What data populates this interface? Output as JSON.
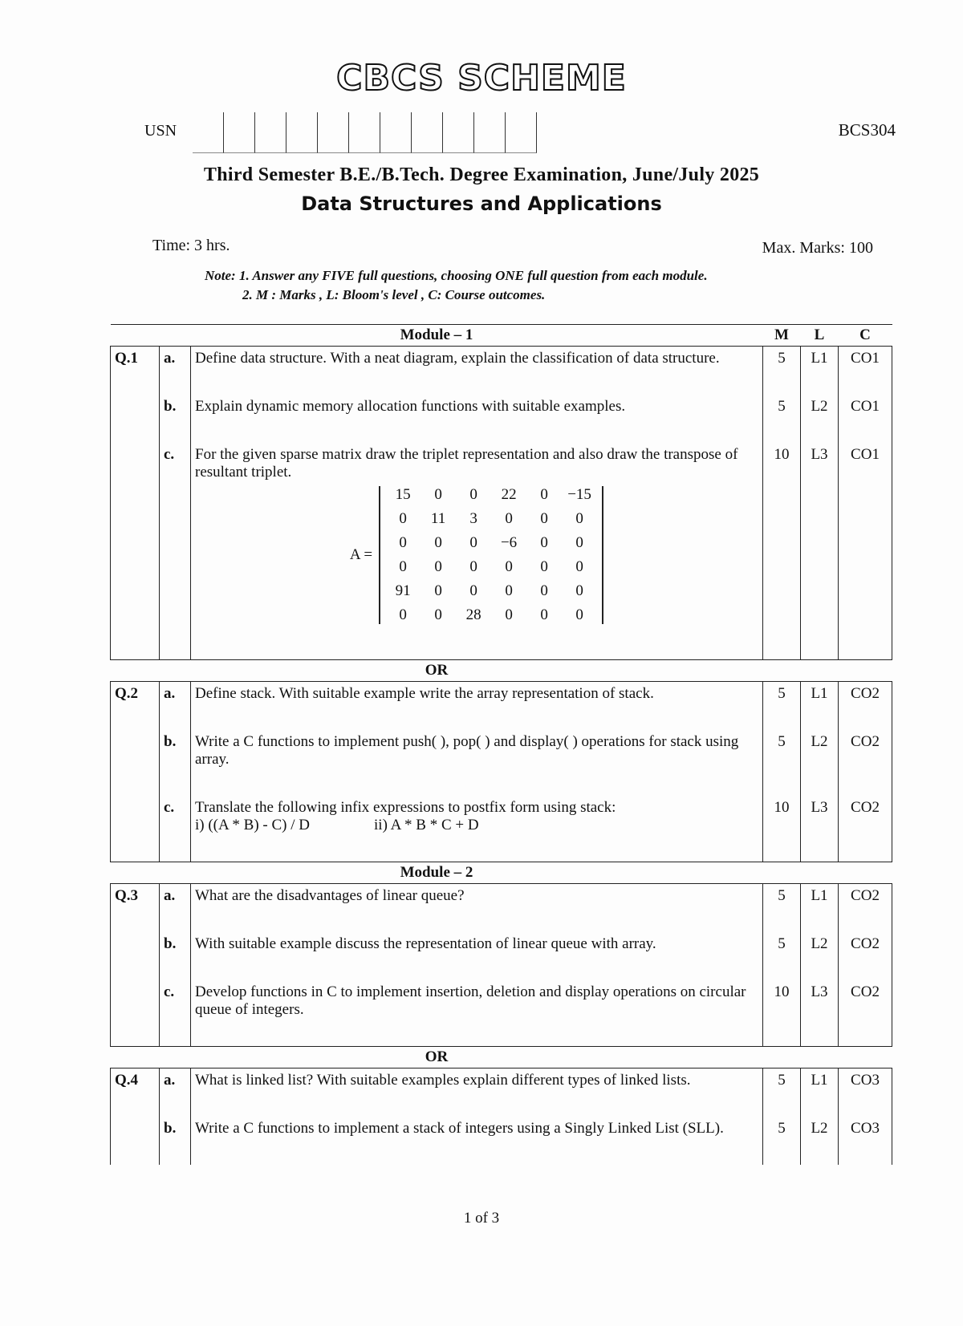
{
  "logo": "CBCS SCHEME",
  "usn_label": "USN",
  "course_code": "BCS304",
  "exam_title": "Third Semester B.E./B.Tech. Degree Examination, June/July 2025",
  "subject": "Data Structures and Applications",
  "time": "Time: 3 hrs.",
  "max_marks": "Max. Marks: 100",
  "note1": "Note: 1. Answer any FIVE full questions, choosing ONE full question from each module.",
  "note2": "2. M : Marks , L: Bloom's level , C: Course outcomes.",
  "headers": {
    "module1": "Module – 1",
    "m": "M",
    "l": "L",
    "c": "C",
    "or": "OR",
    "module2": "Module – 2"
  },
  "q1": {
    "num": "Q.1",
    "items": [
      {
        "s": "a.",
        "text": "Define data structure. With a neat diagram, explain the classification of data structure.",
        "m": "5",
        "l": "L1",
        "c": "CO1"
      },
      {
        "s": "b.",
        "text": "Explain dynamic memory allocation functions with suitable examples.",
        "m": "5",
        "l": "L2",
        "c": "CO1"
      },
      {
        "s": "c.",
        "text": "For the given sparse matrix draw the triplet representation and also draw the transpose of resultant triplet.",
        "m": "10",
        "l": "L3",
        "c": "CO1"
      }
    ]
  },
  "matrix": {
    "label": "A =",
    "rows": [
      [
        "15",
        "0",
        "0",
        "22",
        "0",
        "−15"
      ],
      [
        "0",
        "11",
        "3",
        "0",
        "0",
        "0"
      ],
      [
        "0",
        "0",
        "0",
        "−6",
        "0",
        "0"
      ],
      [
        "0",
        "0",
        "0",
        "0",
        "0",
        "0"
      ],
      [
        "91",
        "0",
        "0",
        "0",
        "0",
        "0"
      ],
      [
        "0",
        "0",
        "28",
        "0",
        "0",
        "0"
      ]
    ]
  },
  "q2": {
    "num": "Q.2",
    "items": [
      {
        "s": "a.",
        "text": "Define stack. With suitable example write the array representation of stack.",
        "m": "5",
        "l": "L1",
        "c": "CO2"
      },
      {
        "s": "b.",
        "text": "Write a C functions to implement push( ), pop( ) and display( ) operations for stack using array.",
        "m": "5",
        "l": "L2",
        "c": "CO2"
      },
      {
        "s": "c.",
        "text": "Translate the following infix expressions to postfix form using stack:",
        "m": "10",
        "l": "L3",
        "c": "CO2"
      }
    ]
  },
  "q2c_expr1": "i)  ((A * B) - C) / D",
  "q2c_expr2": "ii)  A * B * C + D",
  "q3": {
    "num": "Q.3",
    "items": [
      {
        "s": "a.",
        "text": "What are the disadvantages of linear queue?",
        "m": "5",
        "l": "L1",
        "c": "CO2"
      },
      {
        "s": "b.",
        "text": "With suitable example discuss the representation of linear queue with array.",
        "m": "5",
        "l": "L2",
        "c": "CO2"
      },
      {
        "s": "c.",
        "text": "Develop functions in C to implement insertion, deletion and display operations on circular queue of integers.",
        "m": "10",
        "l": "L3",
        "c": "CO2"
      }
    ]
  },
  "q4": {
    "num": "Q.4",
    "items": [
      {
        "s": "a.",
        "text": "What is linked list? With suitable examples explain different types of linked lists.",
        "m": "5",
        "l": "L1",
        "c": "CO3"
      },
      {
        "s": "b.",
        "text": "Write a C functions to implement a stack of integers using a Singly Linked List (SLL).",
        "m": "5",
        "l": "L2",
        "c": "CO3"
      }
    ]
  },
  "page": "1 of 3"
}
